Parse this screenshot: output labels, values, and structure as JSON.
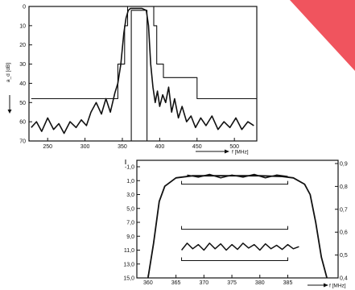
{
  "colors": {
    "ink": "#111111",
    "accent": "#f0545e",
    "paper": "#ffffff"
  },
  "chart_data": [
    {
      "type": "line",
      "ylabel": "a_d [dB]",
      "xlabel": "f [MHz]",
      "xlim": [
        225,
        530
      ],
      "ylim": [
        0,
        70
      ],
      "y_inverted": true,
      "x_ticks": [
        "250",
        "300",
        "350",
        "400",
        "450",
        "500"
      ],
      "x_tick_values": [
        250,
        300,
        350,
        400,
        450,
        500
      ],
      "y_ticks": [
        "0",
        "10",
        "20",
        "30",
        "40",
        "50",
        "60",
        "70"
      ],
      "y_tick_values": [
        0,
        10,
        20,
        30,
        40,
        50,
        60,
        70
      ],
      "series": [
        {
          "role": "tolerance-mask-outer",
          "x": [
            228,
            344,
            344,
            353,
            353,
            357,
            357,
            392,
            392,
            396,
            396,
            405,
            405,
            450,
            450,
            530
          ],
          "y": [
            48,
            48,
            30,
            30,
            10,
            10,
            0,
            0,
            10,
            10,
            30,
            30,
            37,
            37,
            48,
            48
          ]
        },
        {
          "role": "tolerance-mask-inner",
          "x": [
            357,
            362,
            362,
            383,
            383,
            390
          ],
          "y": [
            70,
            70,
            2,
            2,
            70,
            70
          ]
        },
        {
          "role": "measured-response",
          "x": [
            228,
            235,
            242,
            250,
            258,
            265,
            272,
            280,
            288,
            295,
            302,
            308,
            315,
            322,
            328,
            334,
            340,
            344,
            348,
            352,
            355,
            358,
            361,
            364,
            370,
            376,
            382,
            385,
            388,
            391,
            394,
            397,
            400,
            404,
            408,
            412,
            416,
            420,
            425,
            430,
            436,
            442,
            448,
            455,
            462,
            470,
            478,
            486,
            494,
            502,
            510,
            518,
            526
          ],
          "y": [
            63,
            60,
            65,
            58,
            64,
            61,
            66,
            60,
            63,
            59,
            62,
            55,
            50,
            56,
            48,
            55,
            45,
            40,
            30,
            14,
            6,
            2,
            1,
            1,
            1,
            1,
            2,
            10,
            30,
            42,
            50,
            44,
            52,
            46,
            50,
            42,
            55,
            48,
            58,
            52,
            60,
            57,
            63,
            58,
            62,
            57,
            64,
            60,
            63,
            58,
            64,
            60,
            62
          ]
        }
      ]
    },
    {
      "type": "line",
      "xlabel": "f [MHz]",
      "xlim": [
        358,
        394
      ],
      "ylim": [
        -1,
        15
      ],
      "y_inverted": true,
      "y_ticks": [
        "-1,0",
        "1,0",
        "3,0",
        "5,0",
        "7,0",
        "9,0",
        "11,0",
        "13,0",
        "15,0"
      ],
      "y_tick_values": [
        -1,
        1,
        3,
        5,
        7,
        9,
        11,
        13,
        15
      ],
      "y2_ticks": [
        "0,9",
        "0,8",
        "0,7",
        "0,6",
        "0,5",
        "0,4"
      ],
      "y2_tick_values": [
        0.9,
        0.8,
        0.7,
        0.6,
        0.5,
        0.4
      ],
      "x_ticks": [
        "360",
        "365",
        "370",
        "375",
        "380",
        "385"
      ],
      "x_tick_values": [
        360,
        365,
        370,
        375,
        380,
        385
      ],
      "series": [
        {
          "role": "attenuation",
          "x": [
            360,
            361,
            362,
            363,
            365,
            368,
            372,
            376,
            380,
            384,
            386,
            388,
            389,
            390,
            391,
            392
          ],
          "y": [
            15,
            10,
            4,
            1.8,
            0.6,
            0.3,
            0.3,
            0.3,
            0.3,
            0.4,
            0.6,
            1.5,
            3,
            7,
            12,
            15
          ]
        },
        {
          "role": "passband-ripple",
          "x": [
            367,
            369,
            371,
            373,
            375,
            377,
            379,
            381,
            383,
            385
          ],
          "y": [
            0.2,
            0.5,
            0.1,
            0.6,
            0.2,
            0.5,
            0.1,
            0.6,
            0.2,
            0.4
          ]
        },
        {
          "role": "group-delay",
          "x": [
            366,
            367,
            368,
            369,
            370,
            371,
            372,
            373,
            374,
            375,
            376,
            377,
            378,
            379,
            380,
            381,
            382,
            383,
            384,
            385,
            386,
            387
          ],
          "y": [
            11,
            10,
            10.8,
            10.2,
            11,
            10,
            10.8,
            10.1,
            11,
            10.2,
            10.9,
            10,
            10.7,
            10.2,
            11,
            10.1,
            10.8,
            10.3,
            10.9,
            10.2,
            10.8,
            10.5
          ]
        },
        {
          "role": "tolerance-bracket",
          "x": [
            366,
            385
          ],
          "y": [
            1.5,
            1.5
          ]
        },
        {
          "role": "tolerance-bracket",
          "x": [
            366,
            385
          ],
          "y": [
            8,
            8
          ]
        },
        {
          "role": "tolerance-bracket",
          "x": [
            366,
            385
          ],
          "y": [
            12.5,
            12.5
          ]
        }
      ]
    }
  ]
}
